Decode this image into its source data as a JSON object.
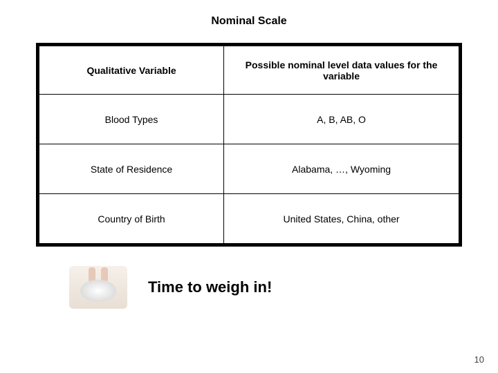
{
  "title": "Nominal Scale",
  "table": {
    "columns": [
      "Qualitative Variable",
      "Possible nominal level data values for the variable"
    ],
    "rows": [
      [
        "Blood Types",
        "A, B, AB, O"
      ],
      [
        "State of Residence",
        "Alabama, …, Wyoming"
      ],
      [
        "Country of Birth",
        "United States, China, other"
      ]
    ],
    "border_color": "#000000",
    "outer_border_width": 4,
    "cell_fontsize": 14,
    "header_fontsize": 14,
    "col_widths_pct": [
      44,
      56
    ]
  },
  "footer": {
    "caption": "Time to weigh in!",
    "caption_fontsize": 22,
    "caption_color": "#000000",
    "image_alt": "person-on-scale"
  },
  "page_number": "10",
  "background_color": "#ffffff"
}
